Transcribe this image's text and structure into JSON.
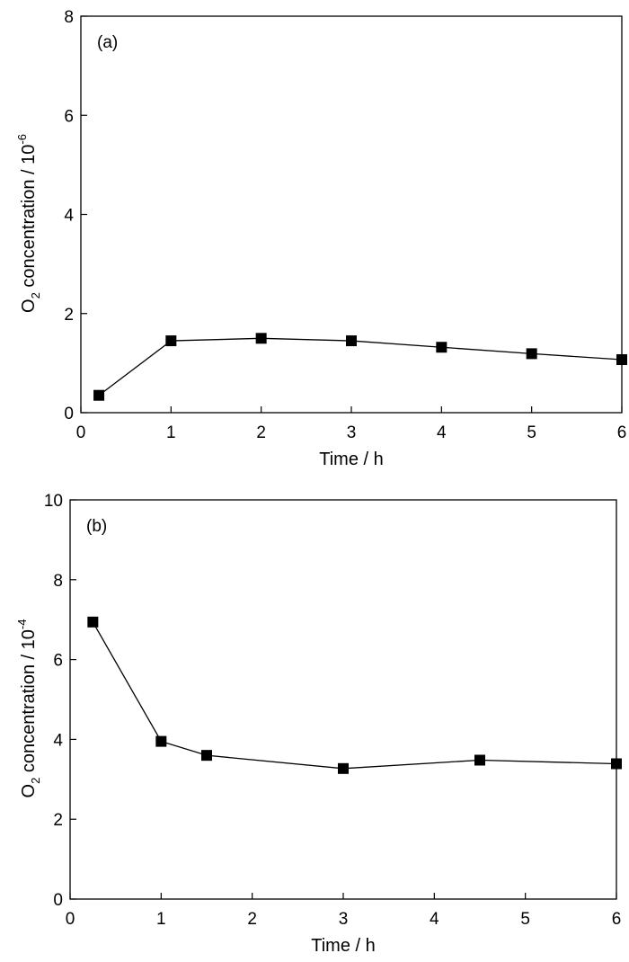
{
  "chart_data": [
    {
      "type": "line",
      "panel_label": "(a)",
      "xlabel": "Time / h",
      "ylabel": {
        "prefix": "O",
        "sub": "2",
        "main": " concentration / 10",
        "sup": "-6"
      },
      "xlim": [
        0,
        6
      ],
      "ylim": [
        0,
        8
      ],
      "xticks": [
        0,
        1,
        2,
        3,
        4,
        5,
        6
      ],
      "yticks": [
        0,
        2,
        4,
        6,
        8
      ],
      "grid": false,
      "series": [
        {
          "name": "O2 concentration",
          "marker": "square",
          "x": [
            0.2,
            1,
            2,
            3,
            4,
            5,
            6
          ],
          "y": [
            0.35,
            1.45,
            1.5,
            1.45,
            1.32,
            1.19,
            1.07
          ]
        }
      ]
    },
    {
      "type": "line",
      "panel_label": "(b)",
      "xlabel": "Time / h",
      "ylabel": {
        "prefix": "O",
        "sub": "2",
        "main": " concentration / 10",
        "sup": "-4"
      },
      "xlim": [
        0,
        6
      ],
      "ylim": [
        0,
        10
      ],
      "xticks": [
        0,
        1,
        2,
        3,
        4,
        5,
        6
      ],
      "yticks": [
        0,
        2,
        4,
        6,
        8,
        10
      ],
      "grid": false,
      "series": [
        {
          "name": "O2 concentration",
          "marker": "square",
          "x": [
            0.25,
            1,
            1.5,
            3,
            4.5,
            6
          ],
          "y": [
            6.94,
            3.95,
            3.6,
            3.27,
            3.48,
            3.39
          ]
        }
      ]
    }
  ]
}
